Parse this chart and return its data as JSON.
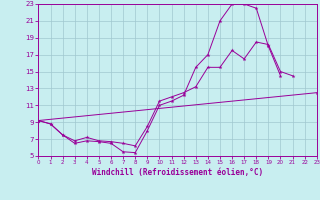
{
  "background_color": "#c8eef0",
  "line_color": "#990099",
  "grid_color": "#a0c8d0",
  "xlabel": "Windchill (Refroidissement éolien,°C)",
  "xlim": [
    0,
    23
  ],
  "ylim": [
    5,
    23
  ],
  "yticks": [
    5,
    7,
    9,
    11,
    13,
    15,
    17,
    19,
    21,
    23
  ],
  "curve1_x": [
    0,
    1,
    2,
    3,
    4,
    5,
    6,
    7,
    8,
    9,
    10,
    11,
    12,
    13,
    14,
    15,
    16,
    17,
    18,
    19,
    20
  ],
  "curve1_y": [
    9.2,
    8.8,
    7.5,
    6.5,
    6.8,
    6.7,
    6.5,
    5.5,
    5.4,
    8.0,
    11.0,
    11.5,
    12.2,
    15.5,
    17.0,
    21.0,
    23.0,
    23.0,
    22.5,
    18.0,
    14.5
  ],
  "curve2_x": [
    0,
    1,
    2,
    3,
    4,
    5,
    6,
    7,
    8,
    9,
    10,
    11,
    12,
    13,
    14,
    15,
    16,
    17,
    18,
    19,
    20,
    21,
    22,
    23
  ],
  "curve2_y": [
    9.2,
    8.8,
    7.5,
    6.8,
    7.2,
    6.8,
    6.7,
    6.5,
    6.2,
    8.5,
    11.5,
    12.0,
    12.5,
    13.2,
    15.5,
    15.5,
    17.5,
    16.5,
    18.5,
    18.2,
    15.0,
    14.5,
    null,
    null
  ],
  "curve3_x": [
    0,
    23
  ],
  "curve3_y": [
    9.2,
    12.5
  ]
}
